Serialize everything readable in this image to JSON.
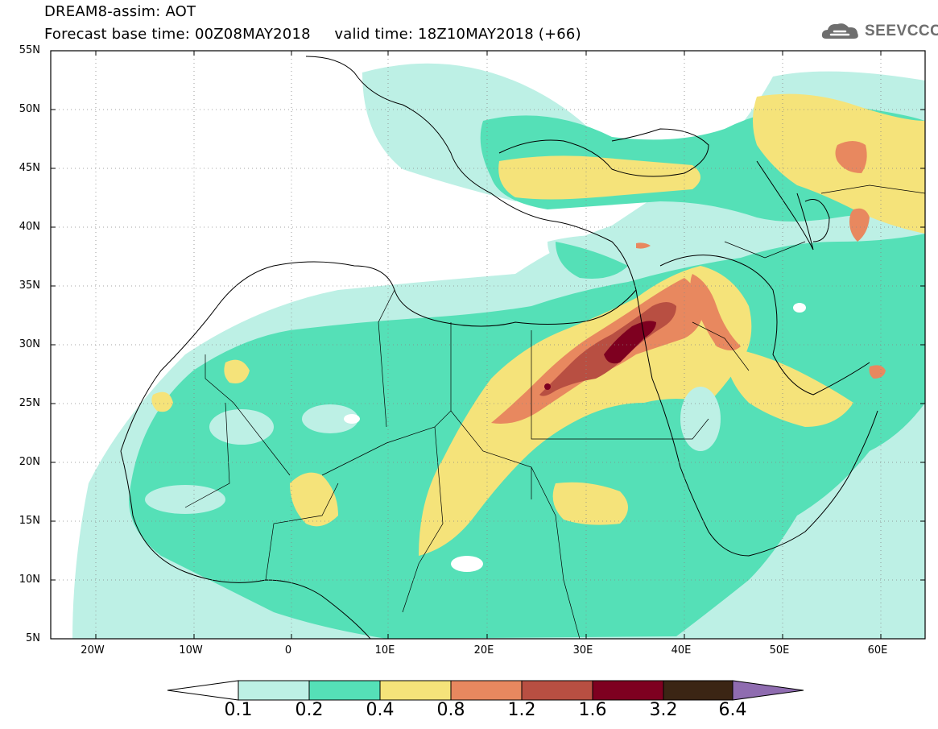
{
  "header": {
    "title": "DREAM8-assim: AOT",
    "base_time_label": "Forecast base time: 00Z08MAY2018",
    "valid_time_label": "valid time: 18Z10MAY2018 (+66)"
  },
  "logo": {
    "text": "SEEVCCC"
  },
  "axes": {
    "lat_labels": [
      "55N",
      "50N",
      "45N",
      "40N",
      "35N",
      "30N",
      "25N",
      "20N",
      "15N",
      "10N",
      "5N"
    ],
    "lon_labels": [
      "20W",
      "10W",
      "0",
      "10E",
      "20E",
      "30E",
      "40E",
      "50E",
      "60E"
    ]
  },
  "colorbar": {
    "labels": [
      "0.1",
      "0.2",
      "0.4",
      "0.8",
      "1.2",
      "1.6",
      "3.2",
      "6.4"
    ],
    "colors": [
      "#ffffff",
      "#bdf0e5",
      "#55e0b7",
      "#f5e37a",
      "#e8885f",
      "#b84f42",
      "#7e0020",
      "#3b2514",
      "#8f6cb0"
    ]
  },
  "colors": {
    "c1": "#bdf0e5",
    "c2": "#55e0b7",
    "c3": "#f5e37a",
    "c4": "#e8885f",
    "c5": "#b84f42",
    "c6": "#7e0020"
  }
}
